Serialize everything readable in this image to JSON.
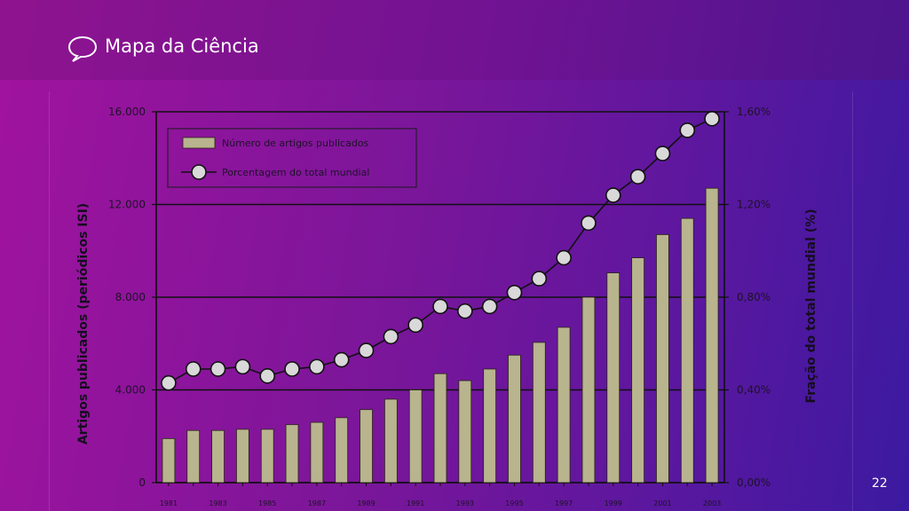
{
  "header": {
    "title": "Mapa da Ciência",
    "icon": "speech-bubble-icon"
  },
  "page_number": "22",
  "chart_data": {
    "type": "bar",
    "categories": [
      "1981",
      "1982",
      "1983",
      "1984",
      "1985",
      "1986",
      "1987",
      "1988",
      "1989",
      "1990",
      "1991",
      "1992",
      "1993",
      "1994",
      "1995",
      "1996",
      "1997",
      "1998",
      "1999",
      "2000",
      "2001",
      "2002",
      "2003"
    ],
    "x_tick_labels": [
      "1981",
      "1983",
      "1985",
      "1987",
      "1989",
      "1991",
      "1993",
      "1995",
      "1997",
      "1999",
      "2001",
      "2003"
    ],
    "series": [
      {
        "name": "Número de artigos publicados",
        "type": "bar",
        "axis": "left",
        "color": "#b8b48e",
        "values": [
          1900,
          2250,
          2250,
          2300,
          2300,
          2500,
          2600,
          2800,
          3150,
          3600,
          4000,
          4700,
          4400,
          4900,
          5500,
          6050,
          6700,
          8000,
          9050,
          9700,
          10700,
          11400,
          12700
        ]
      },
      {
        "name": "Porcentagem do total mundial",
        "type": "line",
        "axis": "right",
        "color": "#d9d9d9",
        "values": [
          0.43,
          0.49,
          0.49,
          0.5,
          0.46,
          0.49,
          0.5,
          0.53,
          0.57,
          0.63,
          0.68,
          0.76,
          0.74,
          0.76,
          0.82,
          0.88,
          0.97,
          1.12,
          1.24,
          1.32,
          1.42,
          1.52,
          1.57
        ]
      }
    ],
    "left_axis": {
      "label": "Artigos publicados (periódicos ISI)",
      "ylim": [
        0,
        16000
      ],
      "tick_labels": [
        "0",
        "4.000",
        "8.000",
        "12.000",
        "16.000"
      ],
      "tick_values": [
        0,
        4000,
        8000,
        12000,
        16000
      ]
    },
    "right_axis": {
      "label": "Fração do total mundial (%)",
      "ylim": [
        0,
        1.6
      ],
      "tick_labels": [
        "0,00%",
        "0,40%",
        "0,80%",
        "1,20%",
        "1,60%"
      ],
      "tick_values": [
        0,
        0.4,
        0.8,
        1.2,
        1.6
      ]
    },
    "grid": true,
    "legend_position": "top-left"
  }
}
